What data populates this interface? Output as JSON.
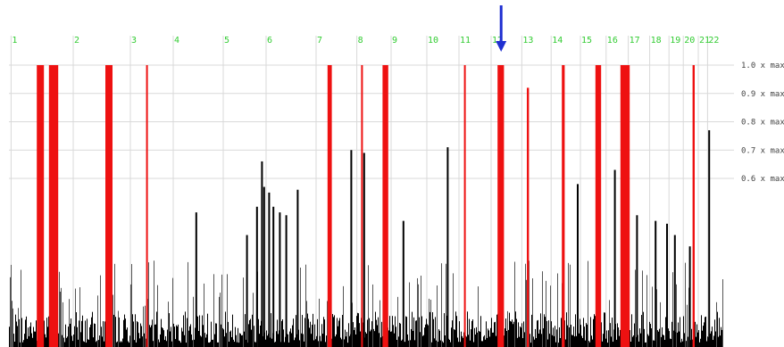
{
  "chart_data": {
    "type": "bar",
    "title": "",
    "xlabel": "",
    "ylabel": "",
    "ylim": [
      0,
      1.0
    ],
    "y_ticks": [
      {
        "value": 1.0,
        "label": "1.0 x max"
      },
      {
        "value": 0.9,
        "label": "0.9 x max"
      },
      {
        "value": 0.8,
        "label": "0.8 x max"
      },
      {
        "value": 0.7,
        "label": "0.7 x max"
      },
      {
        "value": 0.6,
        "label": "0.6 x max"
      }
    ],
    "x_axis": {
      "min": 0,
      "max": 100,
      "unit": "percent of genome (estimated)",
      "categories": [
        "1",
        "2",
        "3",
        "4",
        "5",
        "6",
        "7",
        "8",
        "9",
        "10",
        "11",
        "12",
        "13",
        "14",
        "15",
        "16",
        "17",
        "18",
        "19",
        "20",
        "21",
        "22"
      ],
      "category_starts": [
        0.3,
        9.0,
        17.0,
        23.0,
        30.0,
        36.0,
        43.0,
        48.7,
        53.5,
        58.5,
        63.0,
        67.5,
        71.8,
        75.9,
        80.0,
        83.6,
        86.7,
        89.7,
        92.4,
        94.4,
        96.5,
        97.8
      ]
    },
    "grid": true,
    "background_black_band": {
      "min": 0.02,
      "max": 0.13
    },
    "highlight_regions": [
      {
        "x": 3.9,
        "width": 1.0,
        "ymax": 1.0
      },
      {
        "x": 5.6,
        "width": 1.3,
        "ymax": 1.0
      },
      {
        "x": 13.5,
        "width": 1.0,
        "ymax": 1.0
      },
      {
        "x": 19.2,
        "width": 0.25,
        "ymax": 1.0
      },
      {
        "x": 44.6,
        "width": 0.6,
        "ymax": 1.0
      },
      {
        "x": 49.3,
        "width": 0.25,
        "ymax": 1.0
      },
      {
        "x": 52.3,
        "width": 0.8,
        "ymax": 1.0
      },
      {
        "x": 63.7,
        "width": 0.25,
        "ymax": 1.0
      },
      {
        "x": 68.4,
        "width": 0.9,
        "ymax": 1.0
      },
      {
        "x": 72.5,
        "width": 0.3,
        "ymax": 0.92
      },
      {
        "x": 77.4,
        "width": 0.4,
        "ymax": 1.0
      },
      {
        "x": 82.1,
        "width": 0.8,
        "ymax": 1.0
      },
      {
        "x": 85.6,
        "width": 1.3,
        "ymax": 1.0
      },
      {
        "x": 95.7,
        "width": 0.3,
        "ymax": 1.0
      }
    ],
    "peaks": [
      {
        "x": 26.1,
        "y": 0.48
      },
      {
        "x": 33.2,
        "y": 0.4
      },
      {
        "x": 34.6,
        "y": 0.5
      },
      {
        "x": 35.3,
        "y": 0.66
      },
      {
        "x": 35.6,
        "y": 0.57
      },
      {
        "x": 36.3,
        "y": 0.55
      },
      {
        "x": 36.9,
        "y": 0.5
      },
      {
        "x": 37.8,
        "y": 0.48
      },
      {
        "x": 38.7,
        "y": 0.47
      },
      {
        "x": 40.3,
        "y": 0.56
      },
      {
        "x": 47.8,
        "y": 0.7
      },
      {
        "x": 49.6,
        "y": 0.69
      },
      {
        "x": 55.1,
        "y": 0.45
      },
      {
        "x": 61.3,
        "y": 0.71
      },
      {
        "x": 79.5,
        "y": 0.58
      },
      {
        "x": 84.7,
        "y": 0.63
      },
      {
        "x": 87.8,
        "y": 0.47
      },
      {
        "x": 90.4,
        "y": 0.45
      },
      {
        "x": 92.0,
        "y": 0.44
      },
      {
        "x": 93.1,
        "y": 0.4
      },
      {
        "x": 95.2,
        "y": 0.36
      },
      {
        "x": 97.9,
        "y": 0.77
      }
    ],
    "marker": {
      "x": 68.9,
      "label": "",
      "color": "#1f2fd1"
    }
  },
  "colors": {
    "highlight": "#ee1111",
    "bars": "#000000",
    "grid": "#d9d9d9",
    "chromosome_labels": "#33cc33",
    "tick_labels": "#444444",
    "marker": "#1f2fd1"
  }
}
